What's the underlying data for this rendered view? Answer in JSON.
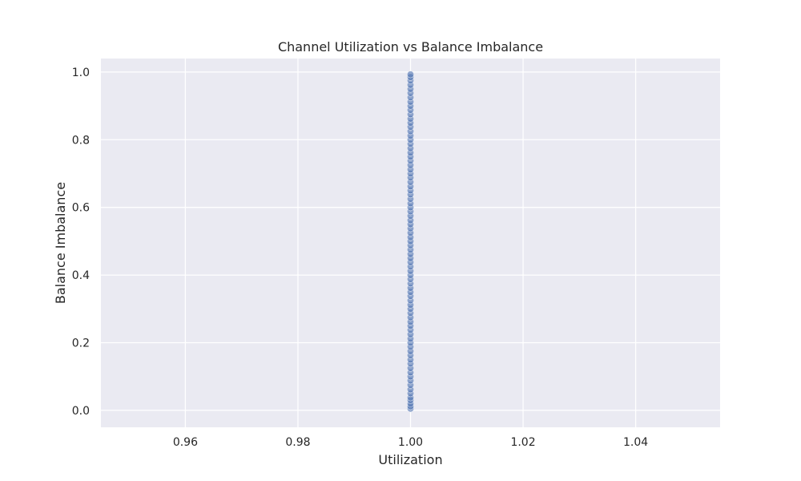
{
  "chart_data": {
    "type": "scatter",
    "title": "Channel Utilization vs Balance Imbalance",
    "xlabel": "Utilization",
    "ylabel": "Balance Imbalance",
    "xlim": [
      0.945,
      1.055
    ],
    "ylim": [
      -0.05,
      1.04
    ],
    "x_ticks": [
      0.96,
      0.98,
      1.0,
      1.02,
      1.04
    ],
    "x_tick_labels": [
      "0.96",
      "0.98",
      "1.00",
      "1.02",
      "1.04"
    ],
    "y_ticks": [
      0.0,
      0.2,
      0.4,
      0.6,
      0.8,
      1.0
    ],
    "y_tick_labels": [
      "0.0",
      "0.2",
      "0.4",
      "0.6",
      "0.8",
      "1.0"
    ],
    "grid": true,
    "colors": {
      "plot_background": "#eaeaf2",
      "grid": "#ffffff",
      "marker": "#4c72b0"
    },
    "points": [
      {
        "x": 1.0,
        "y": 0.005
      },
      {
        "x": 1.0,
        "y": 0.012
      },
      {
        "x": 1.0,
        "y": 0.02
      },
      {
        "x": 1.0,
        "y": 0.03
      },
      {
        "x": 1.0,
        "y": 0.038
      },
      {
        "x": 1.0,
        "y": 0.05
      },
      {
        "x": 1.0,
        "y": 0.062
      },
      {
        "x": 1.0,
        "y": 0.075
      },
      {
        "x": 1.0,
        "y": 0.088
      },
      {
        "x": 1.0,
        "y": 0.1
      },
      {
        "x": 1.0,
        "y": 0.112
      },
      {
        "x": 1.0,
        "y": 0.125
      },
      {
        "x": 1.0,
        "y": 0.138
      },
      {
        "x": 1.0,
        "y": 0.15
      },
      {
        "x": 1.0,
        "y": 0.163
      },
      {
        "x": 1.0,
        "y": 0.175
      },
      {
        "x": 1.0,
        "y": 0.188
      },
      {
        "x": 1.0,
        "y": 0.2
      },
      {
        "x": 1.0,
        "y": 0.212
      },
      {
        "x": 1.0,
        "y": 0.225
      },
      {
        "x": 1.0,
        "y": 0.238
      },
      {
        "x": 1.0,
        "y": 0.25
      },
      {
        "x": 1.0,
        "y": 0.262
      },
      {
        "x": 1.0,
        "y": 0.275
      },
      {
        "x": 1.0,
        "y": 0.288
      },
      {
        "x": 1.0,
        "y": 0.3
      },
      {
        "x": 1.0,
        "y": 0.312
      },
      {
        "x": 1.0,
        "y": 0.325
      },
      {
        "x": 1.0,
        "y": 0.338
      },
      {
        "x": 1.0,
        "y": 0.35
      },
      {
        "x": 1.0,
        "y": 0.362
      },
      {
        "x": 1.0,
        "y": 0.375
      },
      {
        "x": 1.0,
        "y": 0.388
      },
      {
        "x": 1.0,
        "y": 0.4
      },
      {
        "x": 1.0,
        "y": 0.412
      },
      {
        "x": 1.0,
        "y": 0.425
      },
      {
        "x": 1.0,
        "y": 0.438
      },
      {
        "x": 1.0,
        "y": 0.45
      },
      {
        "x": 1.0,
        "y": 0.462
      },
      {
        "x": 1.0,
        "y": 0.475
      },
      {
        "x": 1.0,
        "y": 0.488
      },
      {
        "x": 1.0,
        "y": 0.5
      },
      {
        "x": 1.0,
        "y": 0.512
      },
      {
        "x": 1.0,
        "y": 0.525
      },
      {
        "x": 1.0,
        "y": 0.538
      },
      {
        "x": 1.0,
        "y": 0.55
      },
      {
        "x": 1.0,
        "y": 0.562
      },
      {
        "x": 1.0,
        "y": 0.575
      },
      {
        "x": 1.0,
        "y": 0.588
      },
      {
        "x": 1.0,
        "y": 0.6
      },
      {
        "x": 1.0,
        "y": 0.612
      },
      {
        "x": 1.0,
        "y": 0.625
      },
      {
        "x": 1.0,
        "y": 0.638
      },
      {
        "x": 1.0,
        "y": 0.65
      },
      {
        "x": 1.0,
        "y": 0.662
      },
      {
        "x": 1.0,
        "y": 0.675
      },
      {
        "x": 1.0,
        "y": 0.688
      },
      {
        "x": 1.0,
        "y": 0.7
      },
      {
        "x": 1.0,
        "y": 0.712
      },
      {
        "x": 1.0,
        "y": 0.725
      },
      {
        "x": 1.0,
        "y": 0.738
      },
      {
        "x": 1.0,
        "y": 0.75
      },
      {
        "x": 1.0,
        "y": 0.762
      },
      {
        "x": 1.0,
        "y": 0.775
      },
      {
        "x": 1.0,
        "y": 0.788
      },
      {
        "x": 1.0,
        "y": 0.8
      },
      {
        "x": 1.0,
        "y": 0.812
      },
      {
        "x": 1.0,
        "y": 0.825
      },
      {
        "x": 1.0,
        "y": 0.838
      },
      {
        "x": 1.0,
        "y": 0.85
      },
      {
        "x": 1.0,
        "y": 0.862
      },
      {
        "x": 1.0,
        "y": 0.875
      },
      {
        "x": 1.0,
        "y": 0.888
      },
      {
        "x": 1.0,
        "y": 0.9
      },
      {
        "x": 1.0,
        "y": 0.912
      },
      {
        "x": 1.0,
        "y": 0.925
      },
      {
        "x": 1.0,
        "y": 0.938
      },
      {
        "x": 1.0,
        "y": 0.95
      },
      {
        "x": 1.0,
        "y": 0.962
      },
      {
        "x": 1.0,
        "y": 0.975
      },
      {
        "x": 1.0,
        "y": 0.985
      },
      {
        "x": 1.0,
        "y": 0.993
      }
    ]
  }
}
